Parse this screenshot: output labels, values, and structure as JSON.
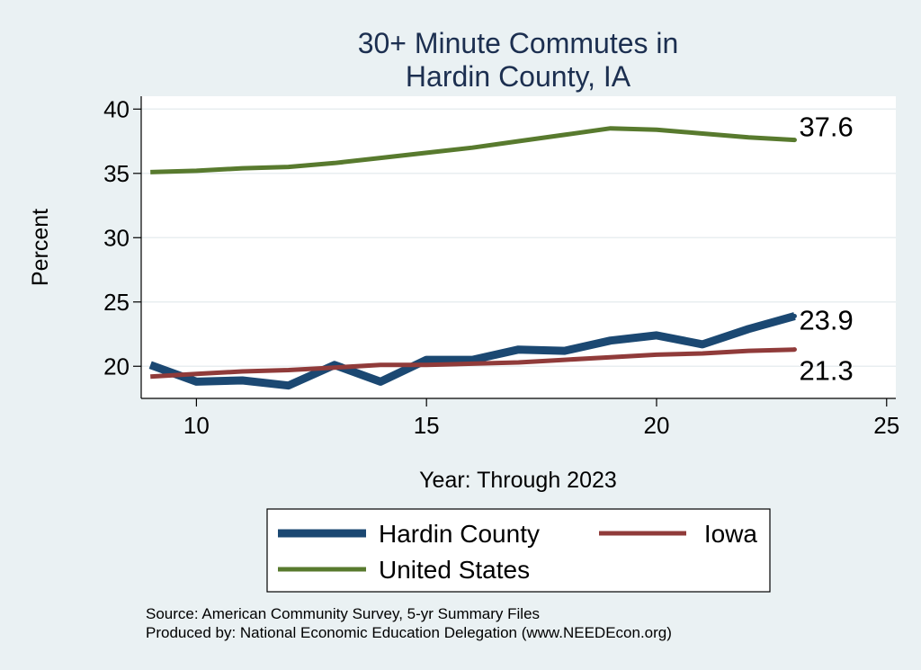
{
  "chart_data": {
    "type": "line",
    "title": [
      "30+ Minute Commutes in",
      "Hardin County, IA"
    ],
    "xlabel": "Year: Through 2023",
    "ylabel": "Percent",
    "xlim": [
      8.8,
      25.2
    ],
    "ylim": [
      17.5,
      41
    ],
    "x_ticks": [
      10,
      15,
      20,
      25
    ],
    "y_ticks": [
      20,
      25,
      30,
      35,
      40
    ],
    "grid": true,
    "x": [
      9,
      10,
      11,
      12,
      13,
      14,
      15,
      16,
      17,
      18,
      19,
      20,
      21,
      22,
      23
    ],
    "series": [
      {
        "name": "Hardin County",
        "color": "#1b4872",
        "values": [
          20.1,
          18.8,
          18.9,
          18.5,
          20.1,
          18.8,
          20.5,
          20.5,
          21.3,
          21.2,
          22.0,
          22.4,
          21.7,
          22.9,
          23.9
        ],
        "end_label": "23.9"
      },
      {
        "name": "Iowa",
        "color": "#903b3a",
        "values": [
          19.2,
          19.4,
          19.6,
          19.7,
          19.9,
          20.1,
          20.1,
          20.2,
          20.3,
          20.5,
          20.7,
          20.9,
          21.0,
          21.2,
          21.3
        ],
        "end_label": "21.3"
      },
      {
        "name": "United States",
        "color": "#587a2e",
        "values": [
          35.1,
          35.2,
          35.4,
          35.5,
          35.8,
          36.2,
          36.6,
          37.0,
          37.5,
          38.0,
          38.5,
          38.4,
          38.1,
          37.8,
          37.6
        ],
        "end_label": "37.6"
      }
    ],
    "legend": {
      "position": "bottom",
      "entries": [
        "Hardin County",
        "Iowa",
        "United States"
      ]
    },
    "source_lines": [
      "Source: American Community Survey, 5-yr Summary Files",
      "Produced by: National Economic Education Delegation (www.NEEDEcon.org)"
    ]
  }
}
